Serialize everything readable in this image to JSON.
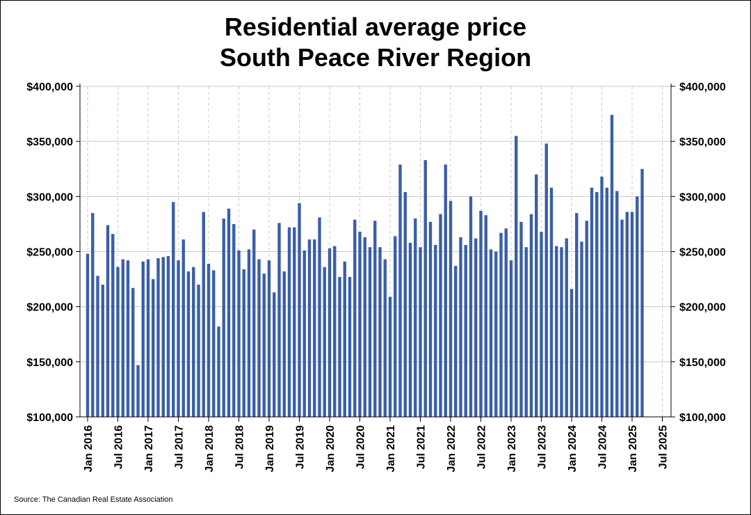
{
  "chart_data": {
    "type": "bar",
    "title": "Residential average price",
    "subtitle": "South Peace River Region",
    "source": "Source: The Canadian Real Estate Association",
    "xlabel": "",
    "ylabel": "",
    "ylim": [
      100000,
      400000
    ],
    "y_ticks": [
      {
        "value": 100000,
        "label": "$100,000"
      },
      {
        "value": 150000,
        "label": "$150,000"
      },
      {
        "value": 200000,
        "label": "$200,000"
      },
      {
        "value": 250000,
        "label": "$250,000"
      },
      {
        "value": 300000,
        "label": "$300,000"
      },
      {
        "value": 350000,
        "label": "$350,000"
      },
      {
        "value": 400000,
        "label": "$400,000"
      }
    ],
    "x_ticks": [
      "Jan 2016",
      "Jul 2016",
      "Jan 2017",
      "Jul 2017",
      "Jan 2018",
      "Jul 2018",
      "Jan 2019",
      "Jul 2019",
      "Jan 2020",
      "Jul 2020",
      "Jan 2021",
      "Jul 2021",
      "Jan 2022",
      "Jul 2022",
      "Jan 2023",
      "Jul 2023",
      "Jan 2024",
      "Jul 2024",
      "Jan 2025",
      "Jul 2025"
    ],
    "start_month": "Jan 2016",
    "grid": true,
    "bar_color": "#3a5fa8",
    "values": [
      248000,
      285000,
      228000,
      220000,
      274000,
      266000,
      236000,
      243000,
      242000,
      217000,
      147000,
      241000,
      243000,
      225000,
      244000,
      245000,
      246000,
      295000,
      242000,
      261000,
      232000,
      236000,
      220000,
      286000,
      239000,
      233000,
      182000,
      280000,
      289000,
      275000,
      251000,
      234000,
      252000,
      270000,
      243000,
      230000,
      242000,
      213000,
      276000,
      232000,
      272000,
      272000,
      294000,
      251000,
      261000,
      261000,
      281000,
      236000,
      253000,
      255000,
      227000,
      241000,
      227000,
      279000,
      268000,
      263000,
      254000,
      278000,
      254000,
      243000,
      209000,
      264000,
      329000,
      304000,
      258000,
      280000,
      254000,
      333000,
      277000,
      256000,
      284000,
      329000,
      296000,
      237000,
      263000,
      256000,
      300000,
      262000,
      287000,
      283000,
      252000,
      250000,
      267000,
      271000,
      242000,
      355000,
      277000,
      254000,
      284000,
      320000,
      268000,
      348000,
      308000,
      255000,
      254000,
      262000,
      216000,
      285000,
      259000,
      278000,
      308000,
      304000,
      318000,
      308000,
      374000,
      305000,
      279000,
      286000,
      286000,
      300000,
      325000
    ]
  }
}
